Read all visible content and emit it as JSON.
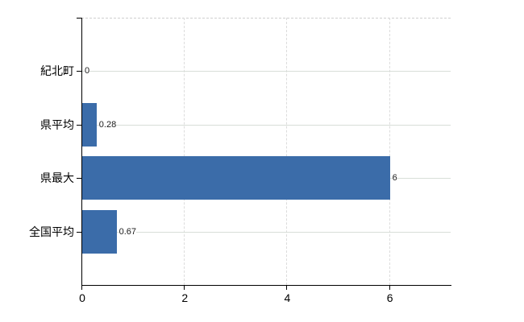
{
  "chart_data": {
    "type": "bar",
    "orientation": "horizontal",
    "title": "",
    "xlabel": "",
    "ylabel": "",
    "categories": [
      "紀北町",
      "県平均",
      "県最大",
      "全国平均"
    ],
    "values": [
      0,
      0.28,
      6,
      0.67
    ],
    "value_labels": [
      "0",
      "0.28",
      "6",
      "0.67"
    ],
    "x_ticks": [
      0,
      2,
      4,
      6
    ],
    "x_tick_labels": [
      "0",
      "2",
      "4",
      "6"
    ],
    "xlim": [
      0,
      7.2
    ],
    "grid": true,
    "legend": false,
    "colors": {
      "bar": "#3b6ca9",
      "grid_horizontal": "#d8ded8",
      "grid_vertical": "#dcdcdc",
      "plot_top_border": "#cfcfcf",
      "axis": "#000000",
      "text": "#000000",
      "background": "#ffffff"
    }
  }
}
